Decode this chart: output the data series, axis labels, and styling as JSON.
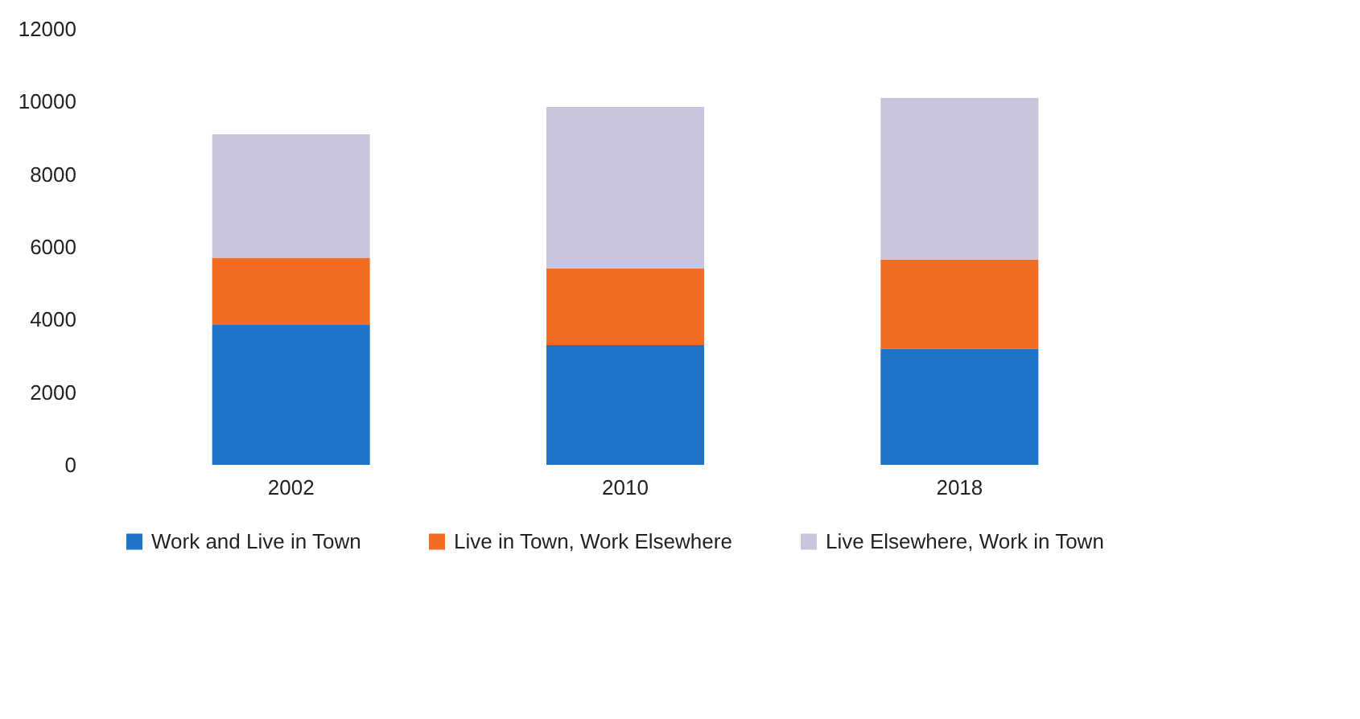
{
  "chart_data": {
    "type": "bar",
    "stacked": true,
    "categories": [
      "2002",
      "2010",
      "2018"
    ],
    "series": [
      {
        "name": "Work and Live in Town",
        "color": "#1f73c8",
        "values": [
          3850,
          3300,
          3200
        ]
      },
      {
        "name": "Live in Town, Work Elsewhere",
        "color": "#f26c24",
        "values": [
          1850,
          2100,
          2450
        ]
      },
      {
        "name": "Live Elsewhere, Work in Town",
        "color": "#c9c5dc",
        "values": [
          3400,
          4450,
          4450
        ]
      }
    ],
    "ylim": [
      0,
      12000
    ],
    "yticks": [
      0,
      2000,
      4000,
      6000,
      8000,
      10000,
      12000
    ],
    "grid": false,
    "legend": "bottom"
  }
}
